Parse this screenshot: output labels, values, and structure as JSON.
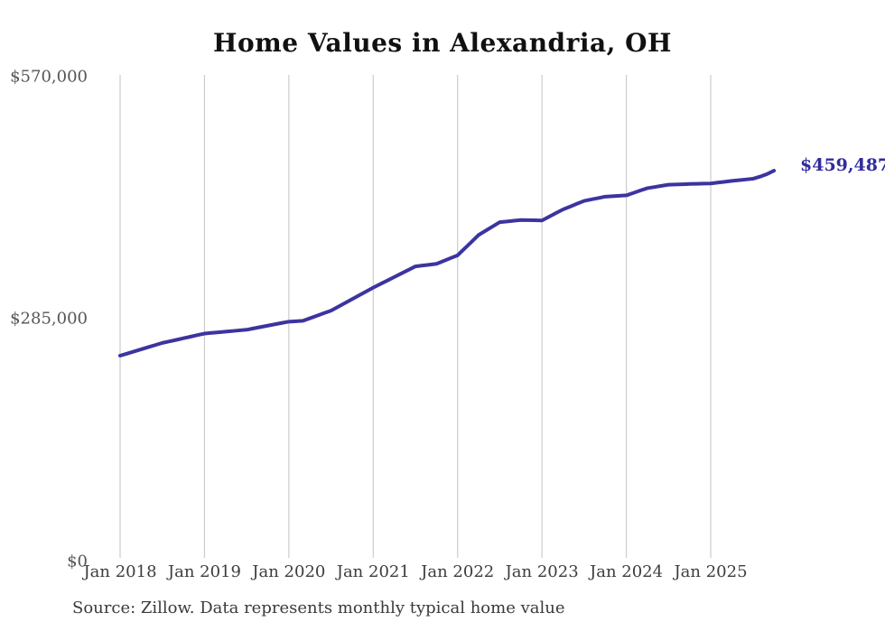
{
  "title": "Home Values in Alexandria, OH",
  "end_label": "$459,487",
  "source_note": "Source: Zillow. Data represents monthly typical home value",
  "colors": {
    "line": "#3c34a0",
    "end_label": "#312b9e",
    "gridline": "#cccccc",
    "x_tick_text": "#3d3d3d",
    "y_tick_text": "#565656",
    "title_text": "#111111",
    "source_text": "#3a3a3a",
    "background": "#ffffff"
  },
  "chart_data": {
    "type": "line",
    "title": "Home Values in Alexandria, OH",
    "series_name": "Monthly typical home value",
    "frequency": "monthly",
    "start_month": "Jan 2018",
    "end_month": "Oct 2025",
    "x_tick_labels": [
      "Jan 2018",
      "Jan 2019",
      "Jan 2020",
      "Jan 2021",
      "Jan 2022",
      "Jan 2023",
      "Jan 2024",
      "Jan 2025"
    ],
    "y_tick_labels": [
      "$0",
      "$285,000",
      "$570,000"
    ],
    "ylim": [
      0,
      570000
    ],
    "grid": "vertical-only",
    "legend": "none",
    "final_value": 459487,
    "values": [
      242000,
      244500,
      247000,
      249500,
      252000,
      254500,
      257000,
      258800,
      260600,
      262500,
      264300,
      266200,
      268000,
      268800,
      269500,
      270300,
      271000,
      271800,
      272500,
      274100,
      275700,
      277300,
      278900,
      280500,
      282000,
      282500,
      283000,
      286000,
      289000,
      292000,
      295000,
      299500,
      304000,
      308500,
      313000,
      317500,
      322000,
      326200,
      330300,
      334500,
      338700,
      342800,
      347000,
      348000,
      349000,
      350000,
      353300,
      356700,
      360000,
      368000,
      376000,
      384000,
      389000,
      394000,
      399000,
      399800,
      400700,
      401500,
      401300,
      401200,
      401000,
      405300,
      409700,
      414000,
      417300,
      420700,
      424000,
      425700,
      427300,
      429000,
      429500,
      430000,
      430500,
      433300,
      436200,
      439000,
      440300,
      441700,
      443000,
      443300,
      443600,
      443900,
      444100,
      444300,
      444500,
      445500,
      446500,
      447500,
      448300,
      449200,
      450000,
      452500,
      455500,
      459487
    ]
  }
}
